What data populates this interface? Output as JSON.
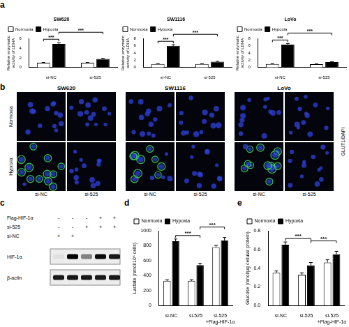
{
  "panel_labels": [
    "a",
    "b",
    "c",
    "d",
    "e"
  ],
  "chart_data": [
    {
      "type": "bar",
      "title": "SW620",
      "ylabel": "Relative enzymatic activity of LDHA",
      "categories": [
        "si-NC",
        "si-525"
      ],
      "series": [
        {
          "name": "Normoxia",
          "color": "#ffffff",
          "values": [
            1.0,
            1.0
          ],
          "errors": [
            0.05,
            0.04
          ]
        },
        {
          "name": "Hypoxia",
          "color": "#000000",
          "values": [
            4.9,
            1.8
          ],
          "errors": [
            0.25,
            0.1
          ]
        }
      ],
      "ylim": [
        0,
        6
      ],
      "yticks": [
        0,
        2,
        4,
        6
      ],
      "grid": false,
      "legend": "top-left",
      "annotations": [
        {
          "text": "***",
          "from": {
            "category": "si-NC",
            "series": "Normoxia"
          },
          "to": {
            "category": "si-NC",
            "series": "Hypoxia"
          }
        },
        {
          "text": "***",
          "from": {
            "category": "si-NC",
            "series": "Hypoxia"
          },
          "to": {
            "category": "si-525",
            "series": "Hypoxia"
          }
        }
      ]
    },
    {
      "type": "bar",
      "title": "SW1116",
      "ylabel": "Relative enzymatic activity of LDHA",
      "categories": [
        "si-NC",
        "si-525"
      ],
      "series": [
        {
          "name": "Normoxia",
          "color": "#ffffff",
          "values": [
            1.0,
            1.0
          ],
          "errors": [
            0.04,
            0.03
          ]
        },
        {
          "name": "Hypoxia",
          "color": "#000000",
          "values": [
            6.0,
            1.6
          ],
          "errors": [
            0.3,
            0.1
          ]
        }
      ],
      "ylim": [
        0,
        8
      ],
      "yticks": [
        0,
        2,
        4,
        6,
        8
      ],
      "grid": false,
      "legend": "top-left",
      "annotations": [
        {
          "text": "***",
          "from": {
            "category": "si-NC",
            "series": "Normoxia"
          },
          "to": {
            "category": "si-NC",
            "series": "Hypoxia"
          }
        },
        {
          "text": "***",
          "from": {
            "category": "si-NC",
            "series": "Hypoxia"
          },
          "to": {
            "category": "si-525",
            "series": "Hypoxia"
          }
        }
      ]
    },
    {
      "type": "bar",
      "title": "LoVo",
      "ylabel": "Relative enzymatic activity of LDHA",
      "categories": [
        "si-NC",
        "si-525"
      ],
      "series": [
        {
          "name": "Normoxia",
          "color": "#ffffff",
          "values": [
            1.0,
            0.95
          ],
          "errors": [
            0.05,
            0.04
          ]
        },
        {
          "name": "Hypoxia",
          "color": "#000000",
          "values": [
            6.4,
            1.5
          ],
          "errors": [
            0.25,
            0.08
          ]
        }
      ],
      "ylim": [
        0,
        8
      ],
      "yticks": [
        0,
        2,
        4,
        6,
        8
      ],
      "grid": false,
      "legend": "top-left",
      "annotations": [
        {
          "text": "***",
          "from": {
            "category": "si-NC",
            "series": "Normoxia"
          },
          "to": {
            "category": "si-NC",
            "series": "Hypoxia"
          }
        },
        {
          "text": "***",
          "from": {
            "category": "si-NC",
            "series": "Hypoxia"
          },
          "to": {
            "category": "si-525",
            "series": "Hypoxia"
          }
        }
      ]
    },
    {
      "type": "bar",
      "ylabel": "Lactate (nmol/10⁶ cells)",
      "categories": [
        "si-NC",
        "si-525",
        "si-525 +Flag-HIF-1α"
      ],
      "series": [
        {
          "name": "Normoxia",
          "color": "#ffffff",
          "values": [
            330,
            330,
            780
          ],
          "errors": [
            15,
            15,
            25
          ]
        },
        {
          "name": "Hypoxia",
          "color": "#000000",
          "values": [
            860,
            540,
            870
          ],
          "errors": [
            30,
            25,
            40
          ]
        }
      ],
      "ylim": [
        0,
        1000
      ],
      "yticks": [
        0,
        200,
        400,
        600,
        800,
        1000
      ],
      "grid": false,
      "legend": "top-left",
      "annotations": [
        {
          "text": "***",
          "from": {
            "category": "si-NC",
            "series": "Hypoxia"
          },
          "to": {
            "category": "si-525",
            "series": "Hypoxia"
          }
        },
        {
          "text": "***",
          "from": {
            "category": "si-525",
            "series": "Hypoxia"
          },
          "to": {
            "category": "si-525 +Flag-HIF-1α",
            "series": "Hypoxia"
          }
        }
      ]
    },
    {
      "type": "bar",
      "ylabel": "Glucose (nmol/μg cellular protein)",
      "categories": [
        "si-NC",
        "si-525",
        "si-525 +Flag-HIF-1α"
      ],
      "series": [
        {
          "name": "Normoxia",
          "color": "#ffffff",
          "values": [
            0.35,
            0.33,
            0.46
          ],
          "errors": [
            0.02,
            0.02,
            0.03
          ]
        },
        {
          "name": "Hypoxia",
          "color": "#000000",
          "values": [
            0.65,
            0.43,
            0.55
          ],
          "errors": [
            0.03,
            0.03,
            0.03
          ]
        }
      ],
      "ylim": [
        0,
        0.8
      ],
      "yticks": [
        {
          "value": 0,
          "label": "0.0"
        },
        0.2,
        0.4,
        0.6,
        0.8
      ],
      "grid": false,
      "legend": "top-left",
      "annotations": [
        {
          "text": "***",
          "from": {
            "category": "si-NC",
            "series": "Hypoxia"
          },
          "to": {
            "category": "si-525",
            "series": "Hypoxia"
          }
        },
        {
          "text": "***",
          "from": {
            "category": "si-525",
            "series": "Hypoxia"
          },
          "to": {
            "category": "si-525 +Flag-HIF-1α",
            "series": "Hypoxia"
          }
        }
      ]
    }
  ],
  "figure_b": {
    "cell_lines": [
      {
        "name": "SW620",
        "glut1": [
          [
            false,
            false
          ],
          [
            true,
            false
          ]
        ]
      },
      {
        "name": "SW1116",
        "glut1": [
          [
            false,
            false
          ],
          [
            true,
            false
          ]
        ]
      },
      {
        "name": "LoVo",
        "glut1": [
          [
            false,
            false
          ],
          [
            true,
            false
          ]
        ]
      }
    ],
    "rows": [
      "Normoxia",
      "Hypoxia"
    ],
    "columns": [
      "si-NC",
      "si-525"
    ],
    "stain": "GLUT1/DAPI"
  },
  "figure_c": {
    "conditions": [
      {
        "name": "Flag-HIF-1α",
        "lanes": [
          "-",
          "-",
          "-",
          "+",
          "+"
        ]
      },
      {
        "name": "si-525",
        "lanes": [
          "-",
          "-",
          "+",
          "+",
          "+"
        ]
      },
      {
        "name": "si-NC",
        "lanes": [
          "+",
          "+",
          null,
          null,
          null
        ]
      }
    ],
    "blots": [
      {
        "name": "HIF-1α",
        "band_intensity": [
          0.05,
          1,
          0.45,
          0.95,
          0.9
        ]
      },
      {
        "name": "β-actin",
        "band_intensity": [
          0.9,
          0.9,
          0.9,
          0.9,
          0.9
        ]
      }
    ]
  }
}
